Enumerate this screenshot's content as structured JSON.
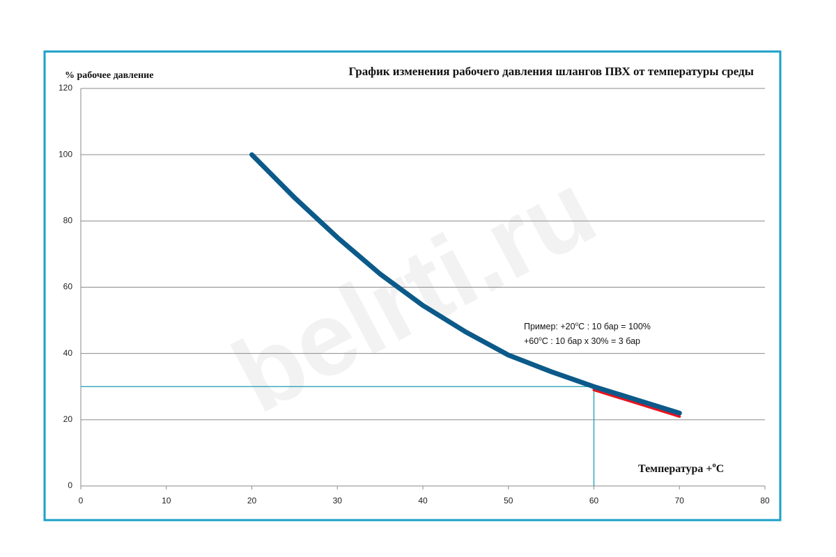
{
  "chart_data": {
    "type": "line",
    "title": "График изменения рабочего давления шлангов ПВХ от температуры среды",
    "y_label": "%  рабочее давление",
    "x_label": [
      "Температура +",
      "o",
      "C"
    ],
    "annotations": [
      [
        "Пример:  +20",
        "o",
        "C : 10 бар = 100%"
      ],
      [
        "+60",
        "o",
        "C : 10 бар х 30% = 3 бар"
      ]
    ],
    "watermark": "belrti.ru",
    "xlim": [
      0,
      80
    ],
    "xticks": [
      0,
      10,
      20,
      30,
      40,
      50,
      60,
      70,
      80
    ],
    "ylim": [
      0,
      120
    ],
    "yticks": [
      0,
      20,
      40,
      60,
      80,
      100,
      120
    ],
    "grid": true,
    "reference": {
      "x": 60,
      "y": 30,
      "color": "#1a9bb0"
    },
    "series": [
      {
        "color": "#e8141e",
        "x": [
          60,
          65,
          70
        ],
        "values": [
          29,
          25,
          21
        ]
      },
      {
        "color": "#0b5a8a",
        "x": [
          20,
          25,
          30,
          35,
          40,
          45,
          50,
          55,
          60,
          65,
          70
        ],
        "values": [
          100,
          87,
          75,
          64,
          54.5,
          46.5,
          39.5,
          34.5,
          30,
          26,
          22
        ]
      }
    ]
  }
}
